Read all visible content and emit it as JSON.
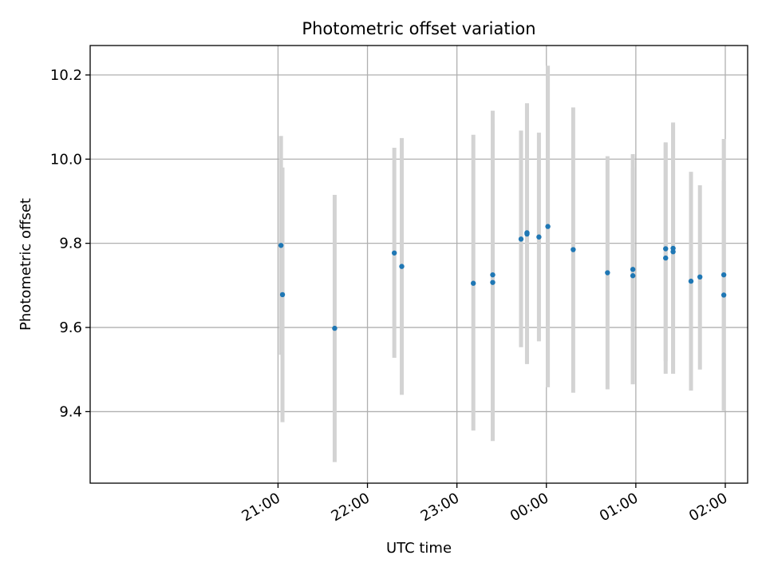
{
  "chart_data": {
    "type": "scatter",
    "title": "Photometric offset variation",
    "xlabel": "UTC time",
    "ylabel": "Photometric offset",
    "x_tick_labels": [
      "21:00",
      "22:00",
      "23:00",
      "00:00",
      "01:00",
      "02:00"
    ],
    "y_tick_labels": [
      "9.4",
      "9.6",
      "9.8",
      "10.0",
      "10.2"
    ],
    "y_ticks": [
      9.4,
      9.6,
      9.8,
      10.0,
      10.2
    ],
    "xlim": [
      "21:00",
      "02:00"
    ],
    "ylim": [
      9.23,
      10.27
    ],
    "grid": true,
    "colors": {
      "point": "#1f77b4",
      "errorbar": "#d3d3d3",
      "grid": "#b0b0b0"
    },
    "series": [
      {
        "points": [
          {
            "x": "21:02",
            "y": 9.795,
            "low": 9.535,
            "high": 10.055
          },
          {
            "x": "21:03",
            "y": 9.678,
            "low": 9.375,
            "high": 9.98
          },
          {
            "x": "21:38",
            "y": 9.598,
            "low": 9.28,
            "high": 9.915
          },
          {
            "x": "22:18",
            "y": 9.777,
            "low": 9.528,
            "high": 10.027
          },
          {
            "x": "22:23",
            "y": 9.745,
            "low": 9.44,
            "high": 10.05
          },
          {
            "x": "23:11",
            "y": 9.705,
            "low": 9.355,
            "high": 10.058
          },
          {
            "x": "23:24",
            "y": 9.707,
            "low": 9.33,
            "high": 10.083
          },
          {
            "x": "23:24",
            "y": 9.725,
            "low": 9.335,
            "high": 10.115
          },
          {
            "x": "23:43",
            "y": 9.81,
            "low": 9.553,
            "high": 10.068
          },
          {
            "x": "23:47",
            "y": 9.822,
            "low": 9.513,
            "high": 10.132
          },
          {
            "x": "23:47",
            "y": 9.825,
            "low": 9.515,
            "high": 10.133
          },
          {
            "x": "23:55",
            "y": 9.815,
            "low": 9.567,
            "high": 10.063
          },
          {
            "x": "00:01",
            "y": 9.84,
            "low": 9.458,
            "high": 10.222
          },
          {
            "x": "00:18",
            "y": 9.785,
            "low": 9.445,
            "high": 10.123
          },
          {
            "x": "00:41",
            "y": 9.73,
            "low": 9.453,
            "high": 10.007
          },
          {
            "x": "00:58",
            "y": 9.723,
            "low": 9.465,
            "high": 9.98
          },
          {
            "x": "00:58",
            "y": 9.738,
            "low": 9.465,
            "high": 10.012
          },
          {
            "x": "01:20",
            "y": 9.787,
            "low": 9.52,
            "high": 10.038
          },
          {
            "x": "01:20",
            "y": 9.765,
            "low": 9.49,
            "high": 10.04
          },
          {
            "x": "01:25",
            "y": 9.78,
            "low": 9.49,
            "high": 10.087
          },
          {
            "x": "01:25",
            "y": 9.788,
            "low": 9.49,
            "high": 10.085
          },
          {
            "x": "01:37",
            "y": 9.71,
            "low": 9.45,
            "high": 9.97
          },
          {
            "x": "01:43",
            "y": 9.72,
            "low": 9.5,
            "high": 9.938
          },
          {
            "x": "01:59",
            "y": 9.677,
            "low": 9.405,
            "high": 9.948
          },
          {
            "x": "01:59",
            "y": 9.725,
            "low": 9.402,
            "high": 10.048
          }
        ]
      }
    ]
  }
}
